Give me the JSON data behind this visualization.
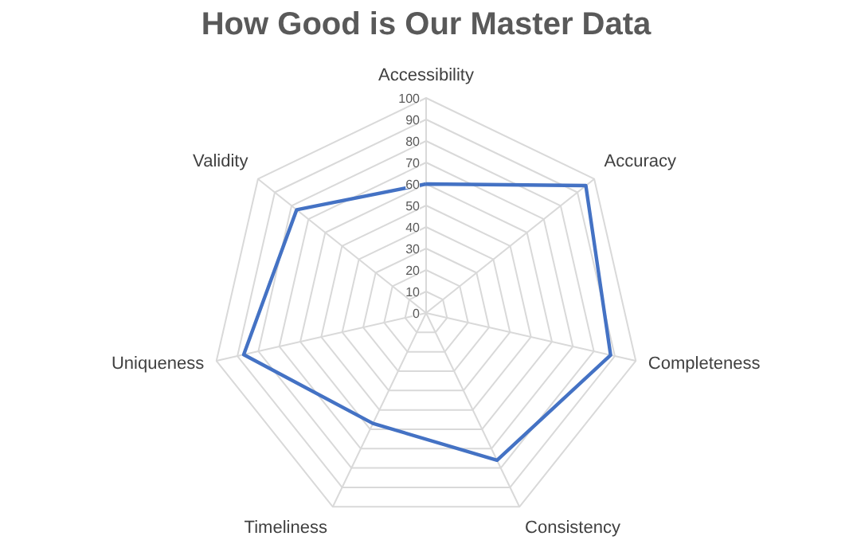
{
  "chart_data": {
    "type": "radar",
    "title": "How Good is Our Master Data",
    "categories": [
      "Accessibility",
      "Accuracy",
      "Completeness",
      "Consistency",
      "Timeliness",
      "Uniqueness",
      "Validity"
    ],
    "series": [
      {
        "color": "#4472c4",
        "values": [
          60,
          95,
          88,
          76,
          57,
          87,
          77
        ]
      }
    ],
    "ylim": [
      0,
      100
    ],
    "yticks": [
      0,
      10,
      20,
      30,
      40,
      50,
      60,
      70,
      80,
      90,
      100
    ],
    "grid": true
  }
}
